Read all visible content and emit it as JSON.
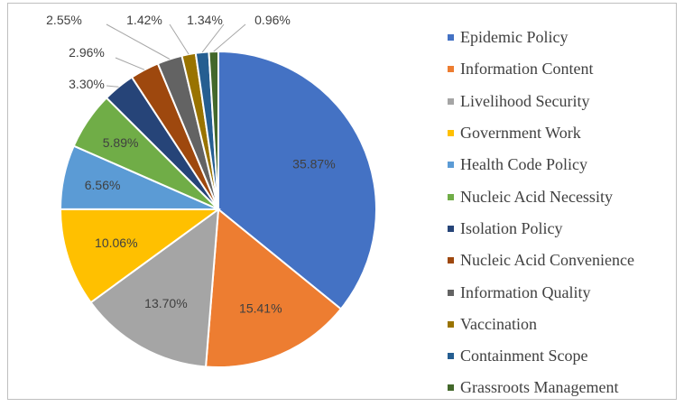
{
  "chart_data": {
    "type": "pie",
    "title": "",
    "unit": "%",
    "legend_position": "right",
    "categories": [
      "Epidemic Policy",
      "Information Content",
      "Livelihood Security",
      "Government Work",
      "Health Code Policy",
      "Nucleic Acid Necessity",
      "Isolation Policy",
      "Nucleic Acid Convenience",
      "Information Quality",
      "Vaccination",
      "Containment Scope",
      "Grassroots Management"
    ],
    "values": [
      35.87,
      15.41,
      13.7,
      10.06,
      6.56,
      5.89,
      3.3,
      2.96,
      2.55,
      1.42,
      1.34,
      0.96
    ],
    "labels": [
      "35.87%",
      "15.41%",
      "13.70%",
      "10.06%",
      "6.56%",
      "5.89%",
      "3.30%",
      "2.96%",
      "2.55%",
      "1.42%",
      "1.34%",
      "0.96%"
    ],
    "colors": [
      "#4472C4",
      "#ED7D31",
      "#A5A5A5",
      "#FFC000",
      "#5B9BD5",
      "#70AD47",
      "#264478",
      "#9E480E",
      "#636363",
      "#997300",
      "#255E91",
      "#43682B"
    ]
  }
}
